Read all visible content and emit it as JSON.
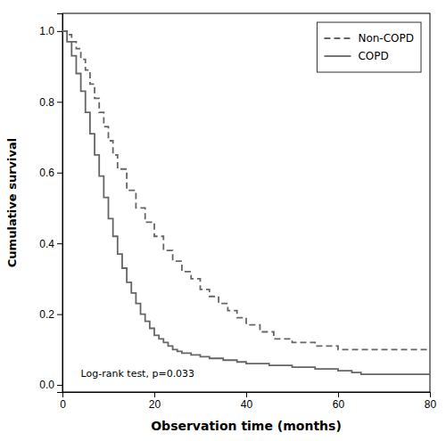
{
  "chart_data": {
    "type": "step",
    "xlabel": "Observation time (months)",
    "ylabel": "Cumulative survival",
    "xlim": [
      0,
      80
    ],
    "ylim": [
      -0.02,
      1.05
    ],
    "xticks": [
      0,
      20,
      40,
      60,
      80
    ],
    "yticks": [
      {
        "value": 0.0,
        "label": "0.0"
      },
      0.2,
      0.4,
      0.6,
      0.8,
      {
        "value": 1.0,
        "label": "1.0"
      }
    ],
    "annotation": "Log-rank test, p=0.033",
    "legend": "upper right",
    "grid": false,
    "series": [
      {
        "name": "Non-COPD",
        "color": "#666666",
        "line_style": "dashed",
        "x": [
          0,
          1,
          2,
          3,
          4,
          5,
          6,
          7,
          8,
          9,
          10,
          11,
          12,
          14,
          16,
          18,
          20,
          22,
          24,
          26,
          28,
          30,
          32,
          34,
          36,
          38,
          40,
          43,
          46,
          50,
          55,
          60,
          65,
          70,
          75,
          80
        ],
        "values": [
          1.0,
          0.99,
          0.97,
          0.95,
          0.92,
          0.89,
          0.85,
          0.81,
          0.77,
          0.73,
          0.69,
          0.65,
          0.61,
          0.55,
          0.5,
          0.46,
          0.42,
          0.38,
          0.35,
          0.32,
          0.3,
          0.27,
          0.25,
          0.23,
          0.21,
          0.19,
          0.17,
          0.15,
          0.13,
          0.12,
          0.11,
          0.1,
          0.1,
          0.1,
          0.1,
          0.1
        ]
      },
      {
        "name": "COPD",
        "color": "#666666",
        "line_style": "solid",
        "x": [
          0,
          1,
          2,
          3,
          4,
          5,
          6,
          7,
          8,
          9,
          10,
          11,
          12,
          13,
          14,
          15,
          16,
          17,
          18,
          19,
          20,
          21,
          22,
          23,
          24,
          25,
          26,
          28,
          30,
          32,
          35,
          38,
          40,
          45,
          50,
          55,
          60,
          63,
          65,
          70,
          80
        ],
        "values": [
          1.0,
          0.97,
          0.93,
          0.88,
          0.83,
          0.77,
          0.71,
          0.65,
          0.59,
          0.53,
          0.47,
          0.42,
          0.37,
          0.33,
          0.29,
          0.26,
          0.23,
          0.2,
          0.18,
          0.16,
          0.14,
          0.13,
          0.12,
          0.11,
          0.1,
          0.095,
          0.09,
          0.085,
          0.08,
          0.075,
          0.07,
          0.065,
          0.06,
          0.055,
          0.05,
          0.045,
          0.04,
          0.035,
          0.03,
          0.03,
          0.03
        ]
      }
    ]
  }
}
